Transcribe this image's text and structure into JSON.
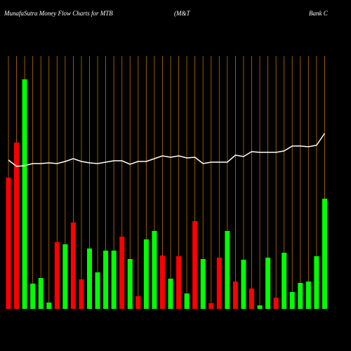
{
  "chart_data": {
    "type": "bar",
    "title": "MunafaSutra  Money Flow  Charts for MTB",
    "subtitle": "(M&T",
    "subtitle2": "Bank C",
    "categories": [
      null,
      null,
      null,
      null,
      null,
      null,
      null,
      null,
      null,
      null,
      null,
      null,
      null,
      null,
      null,
      null,
      null,
      null,
      null,
      null,
      null,
      null,
      null,
      null,
      null,
      null,
      null,
      null,
      null,
      null,
      null,
      null,
      null,
      null,
      null,
      null,
      null,
      null,
      null,
      null
    ],
    "values": [
      187,
      237,
      327,
      36,
      44,
      9,
      95,
      92,
      123,
      42,
      86,
      52,
      83,
      83,
      103,
      71,
      18,
      99,
      111,
      76,
      43,
      75,
      22,
      125,
      71,
      8,
      73,
      111,
      39,
      70,
      29,
      5,
      73,
      16,
      80,
      24,
      37,
      39,
      75,
      157
    ],
    "colors": [
      "#ff0000",
      "#ff0000",
      "#00ff00",
      "#00ff00",
      "#00ff00",
      "#00ff00",
      "#ff0000",
      "#00ff00",
      "#ff0000",
      "#ff0000",
      "#00ff00",
      "#00ff00",
      "#00ff00",
      "#00ff00",
      "#ff0000",
      "#00ff00",
      "#ff0000",
      "#00ff00",
      "#00ff00",
      "#ff0000",
      "#00ff00",
      "#ff0000",
      "#00ff00",
      "#ff0000",
      "#00ff00",
      "#ff0000",
      "#ff0000",
      "#00ff00",
      "#ff0000",
      "#00ff00",
      "#ff0000",
      "#00ff00",
      "#00ff00",
      "#ff0000",
      "#00ff00",
      "#00ff00",
      "#00ff00",
      "#00ff00",
      "#00ff00",
      "#00ff00"
    ],
    "line": {
      "color": "#ffffff",
      "values": [
        212,
        203,
        204,
        207,
        207,
        208,
        207,
        210,
        214,
        210,
        208,
        207,
        209,
        211,
        211,
        206,
        210,
        210,
        214,
        218,
        216,
        218,
        215,
        216,
        207,
        209,
        209,
        209,
        219,
        217,
        224,
        223,
        223,
        223,
        225,
        232,
        232,
        231,
        233,
        250
      ]
    },
    "ylim": [
      0,
      360
    ],
    "grid": true,
    "grid_color": "#c07000"
  }
}
